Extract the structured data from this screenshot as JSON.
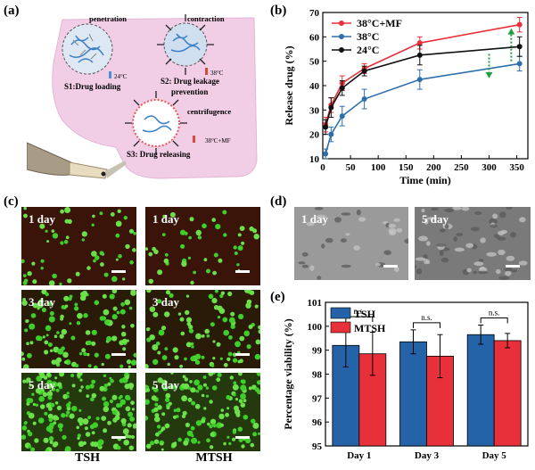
{
  "panels": {
    "a": {
      "label": "(a)",
      "texts": {
        "penetration": "penetration",
        "contraction": "contraction",
        "centrifugence": "centrifugence",
        "s1": "S1:Drug loading",
        "s2_line1": "S2: Drug leakage",
        "s2_line2": "prevention",
        "s3": "S3: Drug releasing",
        "t1": "24°C",
        "t2": "38°C",
        "t3": "38°C+MF"
      }
    },
    "b": {
      "label": "(b)"
    },
    "c": {
      "label": "(c)",
      "images": [
        {
          "tag": "1 day"
        },
        {
          "tag": "1 day"
        },
        {
          "tag": "3 day"
        },
        {
          "tag": "3 day"
        },
        {
          "tag": "5 day"
        },
        {
          "tag": "5 day"
        }
      ],
      "col_labels": [
        "TSH",
        "MTSH"
      ]
    },
    "d": {
      "label": "(d)",
      "images": [
        {
          "tag": "1 day"
        },
        {
          "tag": "5 day"
        }
      ]
    },
    "e": {
      "label": "(e)"
    }
  },
  "chart_data": [
    {
      "type": "line",
      "panel": "b",
      "xlabel": "Time (min)",
      "ylabel": "Release drug (%)",
      "xlim": [
        0,
        370
      ],
      "ylim": [
        10,
        70
      ],
      "xticks": [
        0,
        50,
        100,
        150,
        200,
        250,
        300,
        350
      ],
      "yticks": [
        10,
        20,
        30,
        40,
        50,
        60,
        70
      ],
      "legend": "top-left",
      "series": [
        {
          "name": "38°C+MF",
          "color": "#e8303a",
          "x": [
            5,
            15,
            35,
            75,
            175,
            355
          ],
          "y": [
            24,
            32,
            41,
            47,
            57.5,
            65
          ],
          "err": [
            3,
            3,
            3,
            2,
            2.5,
            3
          ]
        },
        {
          "name": "38°C",
          "color": "#2e6faa",
          "x": [
            5,
            15,
            35,
            75,
            175,
            355
          ],
          "y": [
            12,
            20,
            27.5,
            34.5,
            42.5,
            49
          ],
          "err": [
            2,
            3,
            4,
            4,
            4,
            3
          ]
        },
        {
          "name": "24°C",
          "color": "#111111",
          "x": [
            5,
            15,
            35,
            75,
            175,
            355
          ],
          "y": [
            23,
            31,
            39,
            46,
            52.5,
            56
          ],
          "err": [
            3,
            4,
            3,
            2,
            4,
            4
          ]
        }
      ]
    },
    {
      "type": "bar",
      "panel": "e",
      "ylabel": "Percentage viability (%)",
      "categories": [
        "Day 1",
        "Day 3",
        "Day 5"
      ],
      "ylim": [
        95,
        101
      ],
      "yticks": [
        95,
        96,
        97,
        98,
        99,
        100,
        101
      ],
      "legend": "top-left",
      "significance": "n.s.",
      "series": [
        {
          "name": "TSH",
          "color": "#2463a8",
          "values": [
            99.2,
            99.35,
            99.65
          ],
          "err": [
            0.9,
            0.5,
            0.4
          ]
        },
        {
          "name": "MTSH",
          "color": "#e8303a",
          "values": [
            98.85,
            98.75,
            99.4
          ],
          "err": [
            0.9,
            0.9,
            0.3
          ]
        }
      ]
    }
  ]
}
